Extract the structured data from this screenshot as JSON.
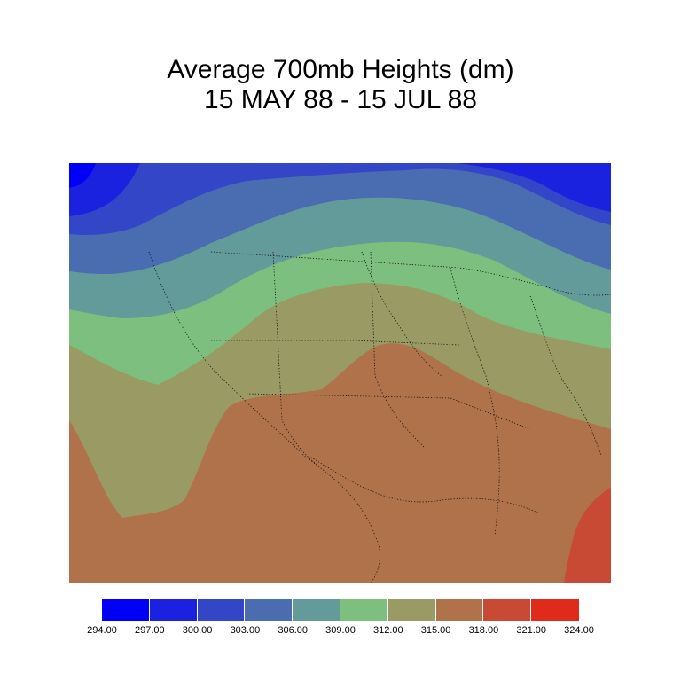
{
  "title": {
    "line1": "Average 700mb Heights (dm)",
    "line2": "15 MAY 88 - 15 JUL 88"
  },
  "legend": {
    "colors": [
      "#0000f8",
      "#1a22e0",
      "#3346c8",
      "#4a6cb0",
      "#639a9a",
      "#7cbf7e",
      "#9a9a64",
      "#b0724a",
      "#c84a34",
      "#e02a1a"
    ],
    "ticks": [
      "294.00",
      "297.00",
      "300.00",
      "303.00",
      "306.00",
      "309.00",
      "312.00",
      "315.00",
      "318.00",
      "321.00",
      "324.00"
    ]
  }
}
